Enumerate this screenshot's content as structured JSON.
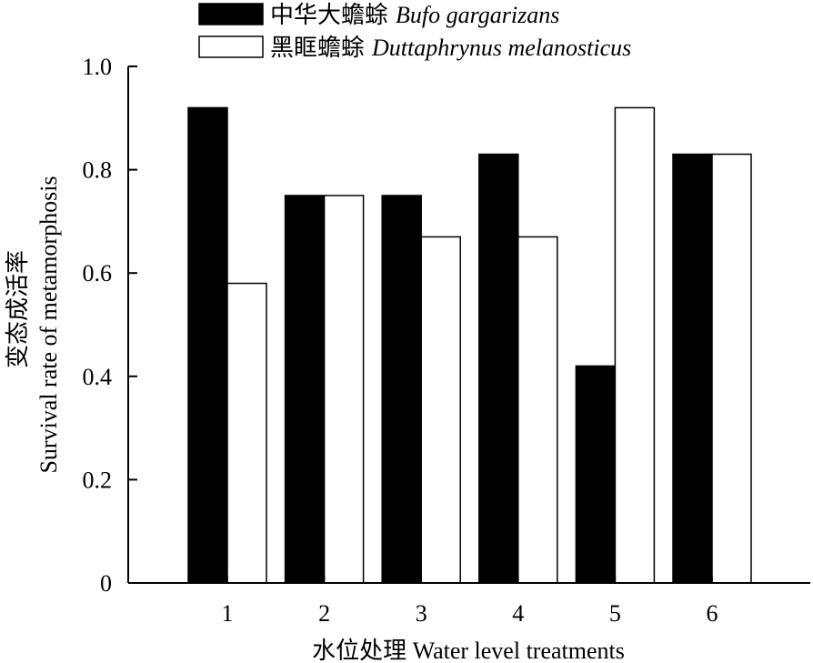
{
  "chart_data": {
    "type": "bar",
    "categories": [
      "1",
      "2",
      "3",
      "4",
      "5",
      "6"
    ],
    "series": [
      {
        "name_cn": "中华大蟾蜍",
        "name_latin": "Bufo gargarizans",
        "color": "#000000",
        "values": [
          0.92,
          0.75,
          0.75,
          0.83,
          0.42,
          0.83
        ]
      },
      {
        "name_cn": "黑眶蟾蜍",
        "name_latin": "Duttaphrynus melanosticus",
        "color": "#ffffff",
        "values": [
          0.58,
          0.75,
          0.67,
          0.67,
          0.92,
          0.83
        ]
      }
    ],
    "xlabel": "水位处理 Water level treatments",
    "ylabel_cn": "变态成活率",
    "ylabel_en": "Survival rate of metamorphosis",
    "ylim": [
      0,
      1.0
    ],
    "yticks": [
      0,
      0.2,
      0.4,
      0.6,
      0.8,
      1.0
    ],
    "ytick_labels": [
      "0",
      "0.2",
      "0.4",
      "0.6",
      "0.8",
      "1.0"
    ],
    "grid": false,
    "legend_position": "top"
  }
}
